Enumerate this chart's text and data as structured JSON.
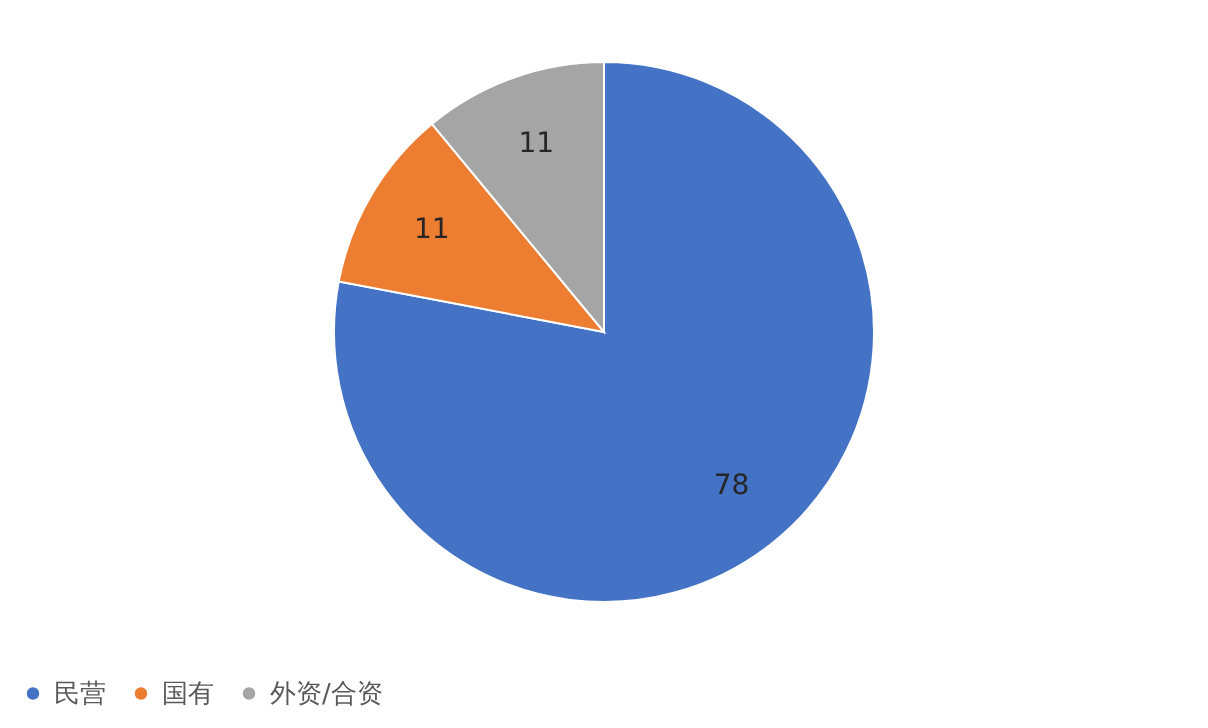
{
  "chart_data": {
    "type": "pie",
    "categories": [
      "民营",
      "国有",
      "外资/合资"
    ],
    "values": [
      78,
      11,
      11
    ],
    "colors": [
      "#4472c4",
      "#ed7d31",
      "#a5a5a5"
    ],
    "data_labels": true,
    "legend": "bottom"
  }
}
